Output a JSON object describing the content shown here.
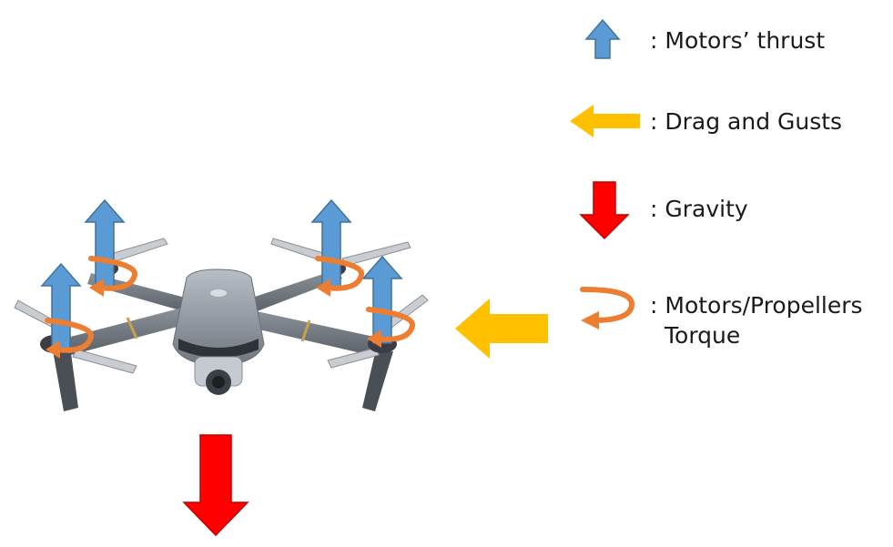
{
  "legend": {
    "thrust_label": ": Motors’ thrust",
    "drag_label": ": Drag and Gusts",
    "gravity_label": ": Gravity",
    "torque_label_line1": ": Motors/Propellers",
    "torque_label_line2": "Torque"
  },
  "colors": {
    "thrust_fill": "#5b9bd5",
    "thrust_stroke": "#41719c",
    "drag_fill": "#ffc000",
    "gravity_fill": "#ff0000",
    "gravity_stroke": "#c00000",
    "torque_fill": "#ed7d31",
    "torque_stroke": "#ae5a21",
    "drone_body": "#8e969e",
    "drone_dark": "#3a3e44"
  },
  "icons": {
    "thrust": "up-arrow-icon",
    "drag": "left-arrow-icon",
    "gravity": "down-arrow-icon",
    "torque": "curved-arrow-icon"
  }
}
